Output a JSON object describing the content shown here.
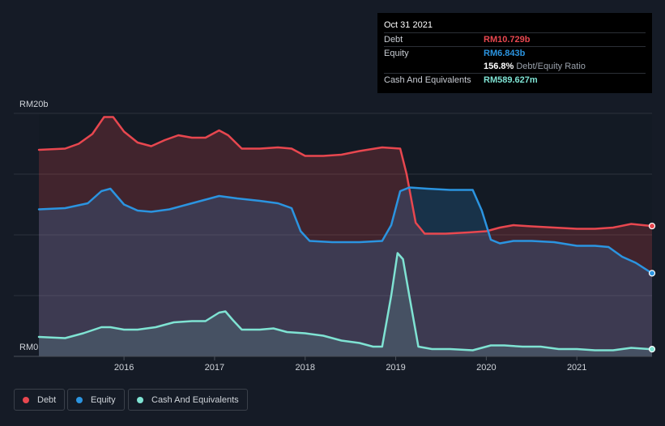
{
  "tooltip": {
    "date": "Oct 31 2021",
    "debt_label": "Debt",
    "debt_value": "RM10.729b",
    "equity_label": "Equity",
    "equity_value": "RM6.843b",
    "ratio_value": "156.8%",
    "ratio_label": "Debt/Equity Ratio",
    "cash_label": "Cash And Equivalents",
    "cash_value": "RM589.627m"
  },
  "legend": {
    "debt": "Debt",
    "equity": "Equity",
    "cash": "Cash And Equivalents"
  },
  "colors": {
    "debt": "#e8474f",
    "equity": "#2b94e0",
    "cash": "#7fe3d3"
  },
  "chart_data": {
    "type": "area",
    "y_tick_labels": [
      "RM20b",
      "RM0"
    ],
    "ylim": [
      0,
      20
    ],
    "y_unit": "RM billions",
    "x_tick_labels": [
      "2016",
      "2017",
      "2018",
      "2019",
      "2020",
      "2021"
    ],
    "xlim": [
      2015.06,
      2021.83
    ],
    "grid": true,
    "legend_position": "bottom-left",
    "series": [
      {
        "name": "Debt",
        "points": [
          [
            2015.06,
            17.0
          ],
          [
            2015.35,
            17.1
          ],
          [
            2015.5,
            17.5
          ],
          [
            2015.65,
            18.3
          ],
          [
            2015.78,
            19.7
          ],
          [
            2015.88,
            19.7
          ],
          [
            2016.0,
            18.5
          ],
          [
            2016.15,
            17.6
          ],
          [
            2016.3,
            17.3
          ],
          [
            2016.45,
            17.8
          ],
          [
            2016.6,
            18.2
          ],
          [
            2016.75,
            18.0
          ],
          [
            2016.9,
            18.0
          ],
          [
            2017.05,
            18.6
          ],
          [
            2017.15,
            18.2
          ],
          [
            2017.3,
            17.1
          ],
          [
            2017.5,
            17.1
          ],
          [
            2017.7,
            17.2
          ],
          [
            2017.85,
            17.1
          ],
          [
            2018.0,
            16.5
          ],
          [
            2018.2,
            16.5
          ],
          [
            2018.4,
            16.6
          ],
          [
            2018.6,
            16.9
          ],
          [
            2018.85,
            17.2
          ],
          [
            2019.05,
            17.1
          ],
          [
            2019.12,
            15.0
          ],
          [
            2019.22,
            11.0
          ],
          [
            2019.32,
            10.1
          ],
          [
            2019.55,
            10.1
          ],
          [
            2019.8,
            10.2
          ],
          [
            2020.0,
            10.3
          ],
          [
            2020.15,
            10.6
          ],
          [
            2020.3,
            10.8
          ],
          [
            2020.5,
            10.7
          ],
          [
            2020.75,
            10.6
          ],
          [
            2021.0,
            10.5
          ],
          [
            2021.2,
            10.5
          ],
          [
            2021.4,
            10.6
          ],
          [
            2021.6,
            10.9
          ],
          [
            2021.83,
            10.729
          ]
        ]
      },
      {
        "name": "Equity",
        "points": [
          [
            2015.06,
            12.1
          ],
          [
            2015.35,
            12.2
          ],
          [
            2015.6,
            12.6
          ],
          [
            2015.75,
            13.6
          ],
          [
            2015.85,
            13.8
          ],
          [
            2016.0,
            12.5
          ],
          [
            2016.15,
            12.0
          ],
          [
            2016.3,
            11.9
          ],
          [
            2016.5,
            12.1
          ],
          [
            2016.7,
            12.5
          ],
          [
            2016.9,
            12.9
          ],
          [
            2017.05,
            13.2
          ],
          [
            2017.25,
            13.0
          ],
          [
            2017.5,
            12.8
          ],
          [
            2017.7,
            12.6
          ],
          [
            2017.85,
            12.2
          ],
          [
            2017.95,
            10.3
          ],
          [
            2018.05,
            9.5
          ],
          [
            2018.3,
            9.4
          ],
          [
            2018.6,
            9.4
          ],
          [
            2018.85,
            9.5
          ],
          [
            2018.95,
            10.8
          ],
          [
            2019.05,
            13.6
          ],
          [
            2019.15,
            13.9
          ],
          [
            2019.35,
            13.8
          ],
          [
            2019.6,
            13.7
          ],
          [
            2019.85,
            13.7
          ],
          [
            2019.95,
            12.0
          ],
          [
            2020.05,
            9.6
          ],
          [
            2020.15,
            9.3
          ],
          [
            2020.3,
            9.5
          ],
          [
            2020.5,
            9.5
          ],
          [
            2020.75,
            9.4
          ],
          [
            2021.0,
            9.1
          ],
          [
            2021.2,
            9.1
          ],
          [
            2021.35,
            9.0
          ],
          [
            2021.5,
            8.2
          ],
          [
            2021.65,
            7.7
          ],
          [
            2021.83,
            6.843
          ]
        ]
      },
      {
        "name": "Cash And Equivalents",
        "points": [
          [
            2015.06,
            1.6
          ],
          [
            2015.2,
            1.55
          ],
          [
            2015.35,
            1.5
          ],
          [
            2015.55,
            1.9
          ],
          [
            2015.75,
            2.4
          ],
          [
            2015.85,
            2.4
          ],
          [
            2016.0,
            2.2
          ],
          [
            2016.15,
            2.2
          ],
          [
            2016.35,
            2.4
          ],
          [
            2016.55,
            2.8
          ],
          [
            2016.75,
            2.9
          ],
          [
            2016.9,
            2.9
          ],
          [
            2017.05,
            3.6
          ],
          [
            2017.12,
            3.7
          ],
          [
            2017.2,
            3.0
          ],
          [
            2017.3,
            2.2
          ],
          [
            2017.5,
            2.2
          ],
          [
            2017.65,
            2.3
          ],
          [
            2017.8,
            2.0
          ],
          [
            2018.0,
            1.9
          ],
          [
            2018.2,
            1.7
          ],
          [
            2018.4,
            1.3
          ],
          [
            2018.6,
            1.1
          ],
          [
            2018.75,
            0.8
          ],
          [
            2018.85,
            0.8
          ],
          [
            2018.95,
            5.0
          ],
          [
            2019.02,
            8.5
          ],
          [
            2019.08,
            8.0
          ],
          [
            2019.15,
            5.0
          ],
          [
            2019.25,
            0.8
          ],
          [
            2019.4,
            0.6
          ],
          [
            2019.6,
            0.6
          ],
          [
            2019.85,
            0.5
          ],
          [
            2020.05,
            0.9
          ],
          [
            2020.2,
            0.9
          ],
          [
            2020.4,
            0.8
          ],
          [
            2020.6,
            0.8
          ],
          [
            2020.8,
            0.6
          ],
          [
            2021.0,
            0.6
          ],
          [
            2021.2,
            0.5
          ],
          [
            2021.4,
            0.5
          ],
          [
            2021.6,
            0.7
          ],
          [
            2021.83,
            0.589627
          ]
        ]
      }
    ]
  }
}
